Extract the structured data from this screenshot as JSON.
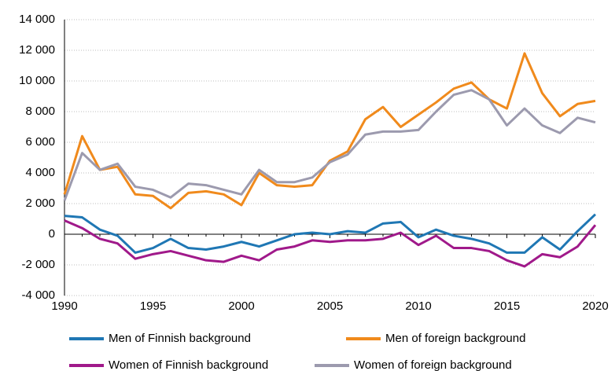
{
  "chart_data": {
    "type": "line",
    "x": [
      1990,
      1991,
      1992,
      1993,
      1994,
      1995,
      1996,
      1997,
      1998,
      1999,
      2000,
      2001,
      2002,
      2003,
      2004,
      2005,
      2006,
      2007,
      2008,
      2009,
      2010,
      2011,
      2012,
      2013,
      2014,
      2015,
      2016,
      2017,
      2018,
      2019,
      2020
    ],
    "series": [
      {
        "name": "Men of Finnish background",
        "color": "#1f77b4",
        "values": [
          1200,
          1100,
          300,
          -100,
          -1200,
          -900,
          -300,
          -900,
          -1000,
          -800,
          -500,
          -800,
          -400,
          0,
          100,
          0,
          200,
          100,
          700,
          800,
          -200,
          300,
          -100,
          -300,
          -600,
          -1200,
          -1200,
          -200,
          -1000,
          200,
          1300
        ]
      },
      {
        "name": "Men of foreign background",
        "color": "#f08a1c",
        "values": [
          2600,
          6400,
          4200,
          4400,
          2600,
          2500,
          1700,
          2700,
          2800,
          2600,
          1900,
          4000,
          3200,
          3100,
          3200,
          4800,
          5400,
          7500,
          8300,
          7000,
          7800,
          8600,
          9500,
          9900,
          8800,
          8200,
          11800,
          9200,
          7700,
          8500,
          8700
        ]
      },
      {
        "name": "Women of Finnish background",
        "color": "#a0198a",
        "values": [
          900,
          400,
          -300,
          -600,
          -1600,
          -1300,
          -1100,
          -1400,
          -1700,
          -1800,
          -1400,
          -1700,
          -1000,
          -800,
          -400,
          -500,
          -400,
          -400,
          -300,
          100,
          -700,
          -100,
          -900,
          -900,
          -1100,
          -1700,
          -2100,
          -1300,
          -1500,
          -800,
          600
        ]
      },
      {
        "name": "Women of foreign background",
        "color": "#9c9aae",
        "values": [
          2200,
          5300,
          4200,
          4600,
          3100,
          2900,
          2400,
          3300,
          3200,
          2900,
          2600,
          4200,
          3400,
          3400,
          3700,
          4700,
          5200,
          6500,
          6700,
          6700,
          6800,
          8000,
          9100,
          9400,
          8800,
          7100,
          8200,
          7100,
          6600,
          7600,
          7300
        ]
      }
    ],
    "xlim": [
      1990,
      2020
    ],
    "xticks": [
      1990,
      1995,
      2000,
      2005,
      2010,
      2015,
      2020
    ],
    "ylim": [
      -4000,
      14000
    ],
    "yticks": [
      {
        "value": -4000,
        "label": "-4 000"
      },
      {
        "value": -2000,
        "label": "-2 000"
      },
      0,
      {
        "value": 2000,
        "label": "2 000"
      },
      {
        "value": 4000,
        "label": "4 000"
      },
      {
        "value": 6000,
        "label": "6 000"
      },
      {
        "value": 8000,
        "label": "8 000"
      },
      {
        "value": 10000,
        "label": "10 000"
      },
      {
        "value": 12000,
        "label": "12 000"
      },
      {
        "value": 14000,
        "label": "14 000"
      }
    ],
    "grid": true
  }
}
